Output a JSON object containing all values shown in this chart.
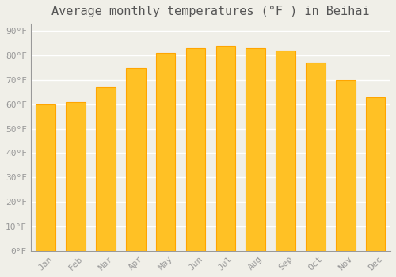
{
  "title": "Average monthly temperatures (°F ) in Beihai",
  "months": [
    "Jan",
    "Feb",
    "Mar",
    "Apr",
    "May",
    "Jun",
    "Jul",
    "Aug",
    "Sep",
    "Oct",
    "Nov",
    "Dec"
  ],
  "values": [
    60,
    61,
    67,
    75,
    81,
    83,
    84,
    83,
    82,
    77,
    70,
    63
  ],
  "bar_color_face": "#FFC125",
  "bar_color_edge": "#FFA500",
  "background_color": "#F0EFE8",
  "yticks": [
    0,
    10,
    20,
    30,
    40,
    50,
    60,
    70,
    80,
    90
  ],
  "ylim": [
    0,
    93
  ],
  "grid_color": "#FFFFFF",
  "title_fontsize": 11,
  "tick_fontsize": 8,
  "tick_color": "#999999",
  "title_color": "#555555",
  "spine_color": "#999999"
}
